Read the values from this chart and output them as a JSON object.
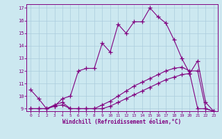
{
  "xlabel": "Windchill (Refroidissement éolien,°C)",
  "x_values": [
    0,
    1,
    2,
    3,
    4,
    5,
    6,
    7,
    8,
    9,
    10,
    11,
    12,
    13,
    14,
    15,
    16,
    17,
    18,
    19,
    20,
    21,
    22,
    23
  ],
  "line1": [
    10.5,
    9.8,
    9.0,
    9.2,
    9.8,
    10.0,
    12.0,
    12.2,
    12.2,
    14.2,
    13.5,
    15.7,
    15.0,
    15.9,
    15.9,
    17.0,
    16.3,
    15.8,
    14.5,
    13.0,
    11.8,
    12.8,
    9.5,
    8.8
  ],
  "line2": [
    9.0,
    9.0,
    9.0,
    9.3,
    9.5,
    9.0,
    9.0,
    9.0,
    9.0,
    9.3,
    9.6,
    10.0,
    10.4,
    10.8,
    11.1,
    11.4,
    11.7,
    12.0,
    12.2,
    12.3,
    12.0,
    12.0,
    9.0,
    8.8
  ],
  "line3": [
    9.0,
    9.0,
    9.0,
    9.2,
    9.3,
    9.0,
    9.0,
    9.0,
    9.0,
    9.0,
    9.2,
    9.5,
    9.8,
    10.1,
    10.4,
    10.7,
    11.0,
    11.3,
    11.5,
    11.7,
    11.8,
    9.0,
    9.0,
    8.8
  ],
  "line_color": "#800080",
  "bg_color": "#cce8f0",
  "grid_color": "#aaccdd",
  "ylim": [
    9,
    17
  ],
  "xlim": [
    -0.5,
    23.5
  ],
  "yticks": [
    9,
    10,
    11,
    12,
    13,
    14,
    15,
    16,
    17
  ],
  "xticks": [
    0,
    1,
    2,
    3,
    4,
    5,
    6,
    7,
    8,
    9,
    10,
    11,
    12,
    13,
    14,
    15,
    16,
    17,
    18,
    19,
    20,
    21,
    22,
    23
  ]
}
